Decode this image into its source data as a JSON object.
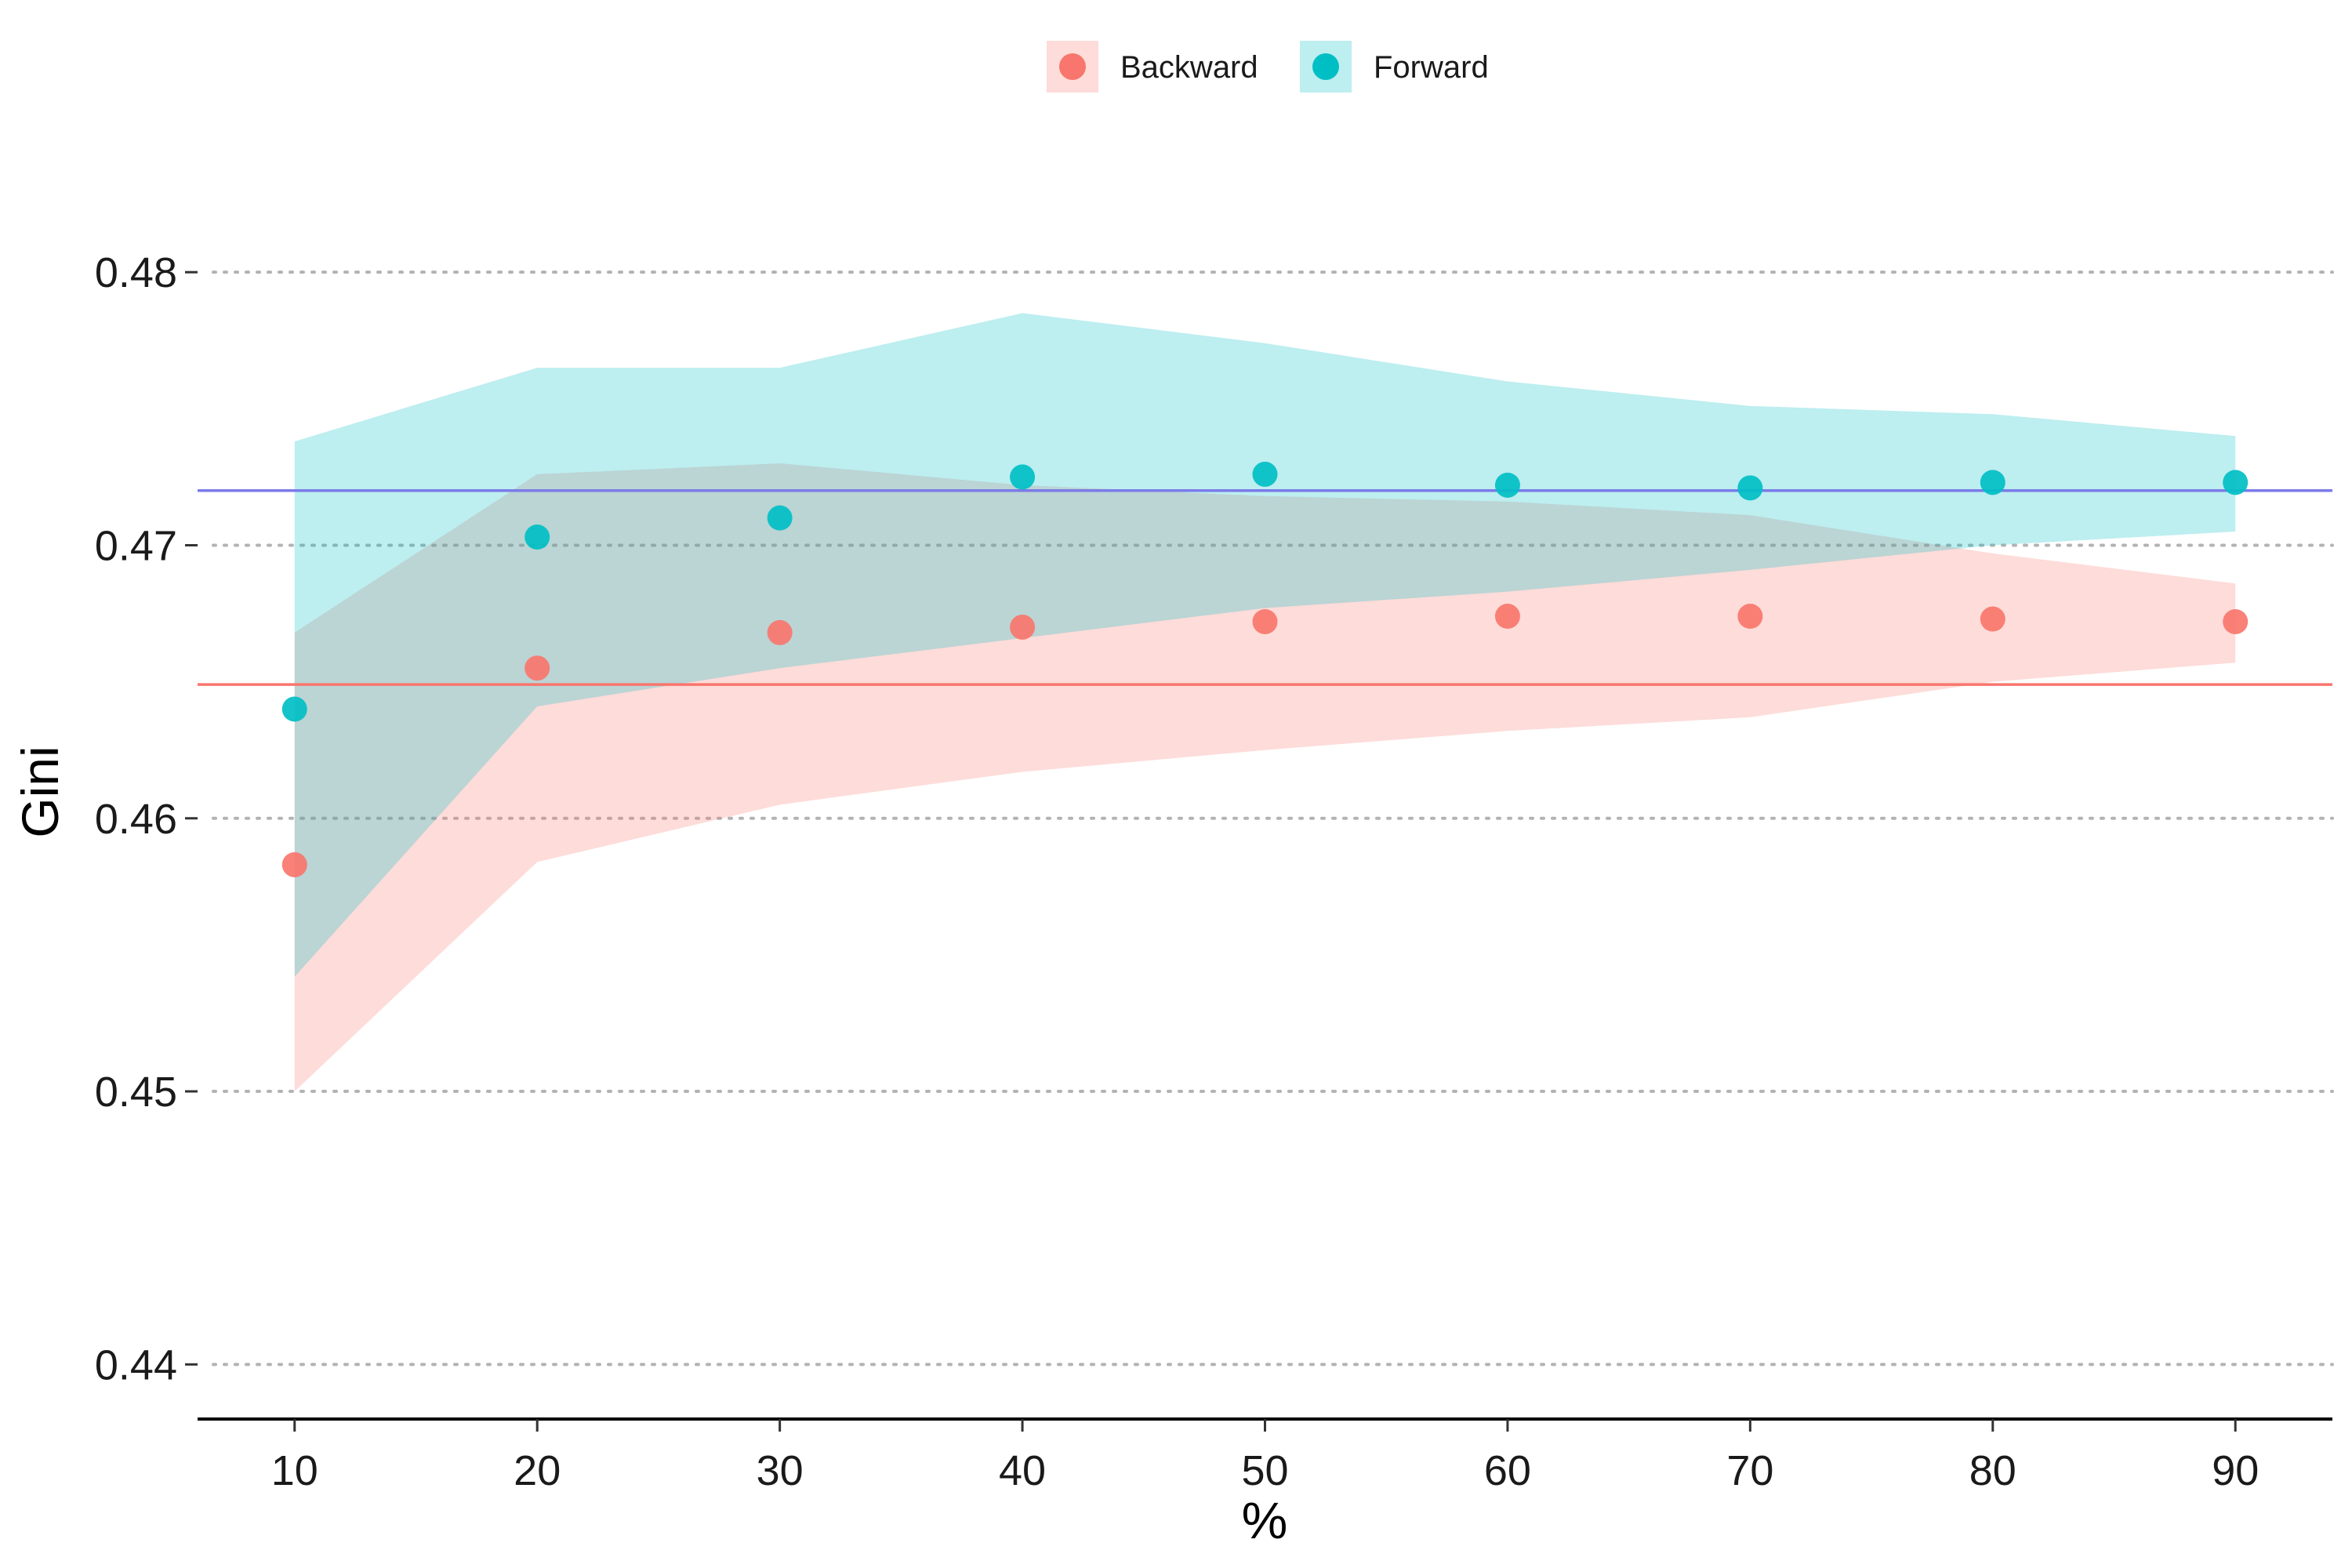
{
  "chart_data": {
    "type": "scatter",
    "title": "",
    "xlabel": "%",
    "ylabel": "Gini",
    "x": [
      10,
      20,
      30,
      40,
      50,
      60,
      70,
      80,
      90
    ],
    "x_ticks": [
      "10",
      "20",
      "30",
      "40",
      "50",
      "60",
      "70",
      "80",
      "90"
    ],
    "y_ticks": [
      "0.44",
      "0.45",
      "0.46",
      "0.47",
      "0.48"
    ],
    "y_tick_values": [
      0.44,
      0.45,
      0.46,
      0.47,
      0.48
    ],
    "xlim": [
      6,
      94
    ],
    "ylim": [
      0.438,
      0.4848
    ],
    "grid": "horizontal-dotted",
    "legend_position": "top",
    "series": [
      {
        "name": "Backward",
        "color": "#F8766D",
        "band_color": "#F8766D",
        "values": [
          0.4583,
          0.4655,
          0.4668,
          0.467,
          0.4672,
          0.4674,
          0.4674,
          0.4673,
          0.4672
        ],
        "lower": [
          0.45,
          0.4584,
          0.4605,
          0.4617,
          0.4625,
          0.4632,
          0.4637,
          0.465,
          0.4657
        ],
        "upper": [
          0.4668,
          0.4726,
          0.473,
          0.4722,
          0.4718,
          0.4716,
          0.4711,
          0.4697,
          0.4686
        ],
        "reference_line": 0.4649
      },
      {
        "name": "Forward",
        "color": "#00BFC4",
        "band_color": "#00BFC4",
        "values": [
          0.464,
          0.4703,
          0.471,
          0.4725,
          0.4726,
          0.4722,
          0.4721,
          0.4723,
          0.4723
        ],
        "lower": [
          0.4542,
          0.4641,
          0.4655,
          0.4666,
          0.4677,
          0.4683,
          0.4691,
          0.47,
          0.4705
        ],
        "upper": [
          0.4738,
          0.4765,
          0.4765,
          0.4785,
          0.4774,
          0.476,
          0.4751,
          0.4748,
          0.474
        ],
        "reference_line": 0.472,
        "reference_color": "#7B7BE8"
      }
    ]
  }
}
